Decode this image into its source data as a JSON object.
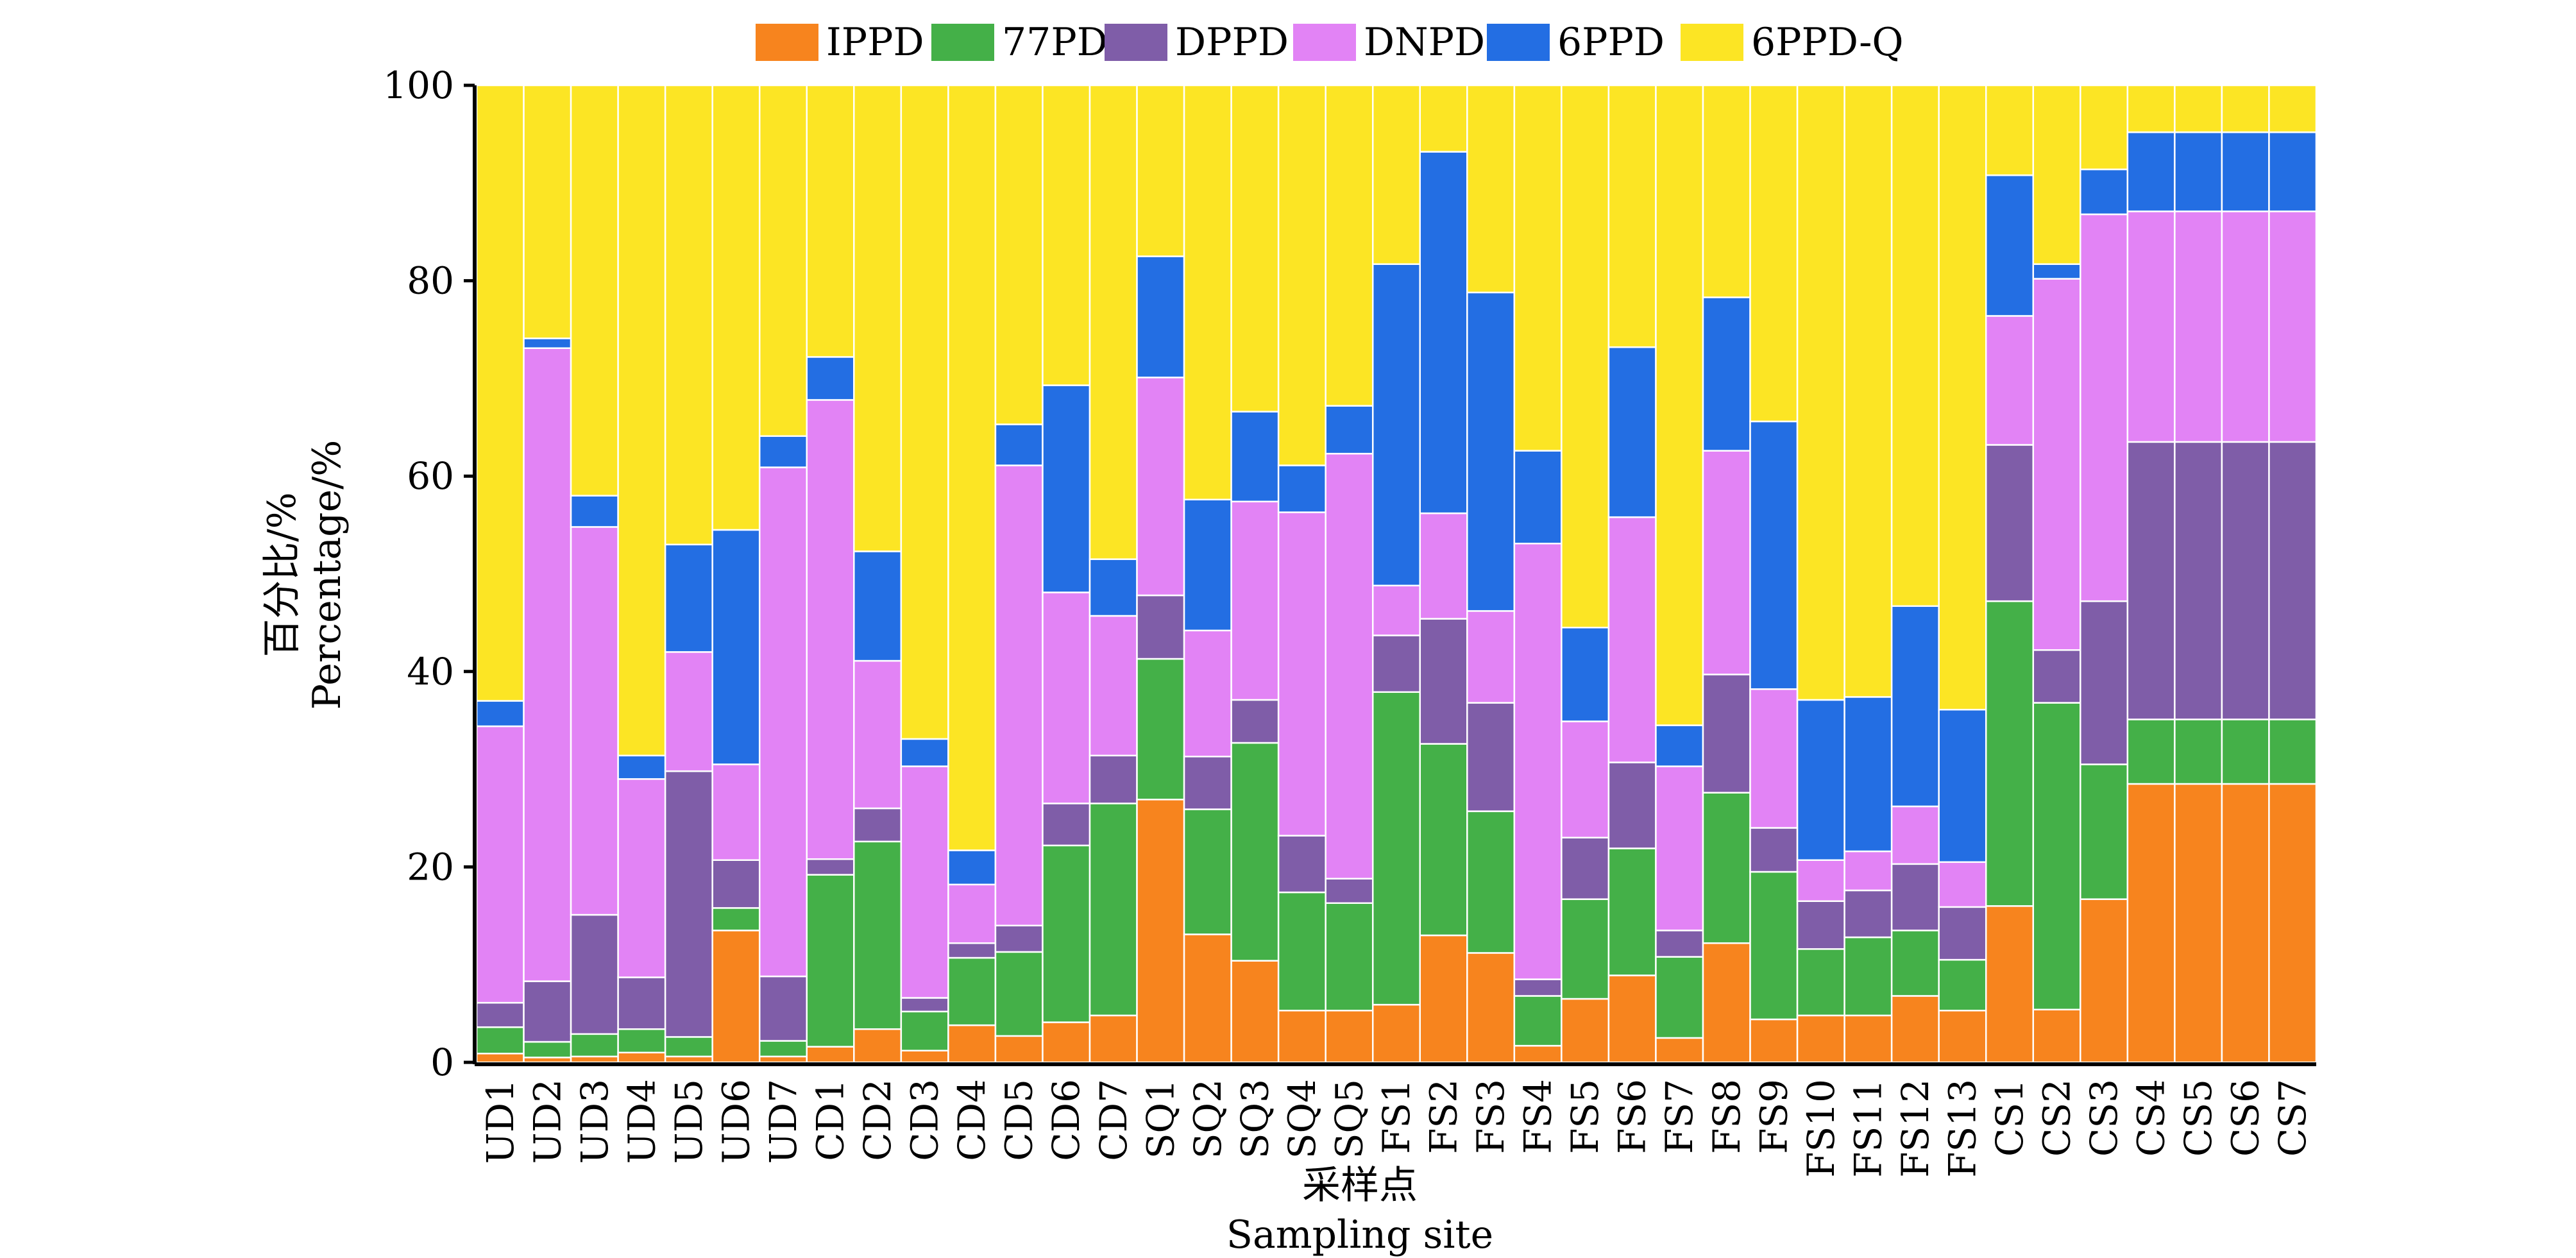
{
  "chart_data": {
    "type": "bar",
    "stacked": true,
    "title": "",
    "xlabel": [
      "采样点",
      "Sampling site"
    ],
    "ylabel": [
      "百分比/%",
      "Percentage/%"
    ],
    "ylim": [
      0,
      100
    ],
    "yticks": [
      0,
      20,
      40,
      60,
      80,
      100
    ],
    "grid": false,
    "legend_position": "top",
    "categories": [
      "UD1",
      "UD2",
      "UD3",
      "UD4",
      "UD5",
      "UD6",
      "UD7",
      "CD1",
      "CD2",
      "CD3",
      "CD4",
      "CD5",
      "CD6",
      "CD7",
      "SQ1",
      "SQ2",
      "SQ3",
      "SQ4",
      "SQ5",
      "FS1",
      "FS2",
      "FS3",
      "FS4",
      "FS5",
      "FS6",
      "FS7",
      "FS8",
      "FS9",
      "FS10",
      "FS11",
      "FS12",
      "FS13",
      "CS1",
      "CS2",
      "CS3",
      "CS4",
      "CS5",
      "CS6",
      "CS7"
    ],
    "series": [
      {
        "name": "IPPD",
        "color": "#F7841E",
        "values": [
          0.9,
          0.5,
          0.6,
          1.0,
          0.6,
          13.5,
          0.6,
          1.6,
          3.4,
          1.2,
          3.8,
          2.7,
          4.1,
          4.8,
          26.9,
          13.1,
          10.4,
          5.3,
          5.3,
          5.9,
          13.0,
          11.2,
          1.7,
          6.5,
          8.9,
          2.5,
          12.2,
          4.4,
          4.8,
          4.8,
          6.8,
          5.3,
          16.0,
          5.4,
          16.7,
          28.5,
          28.5,
          28.5,
          28.5
        ]
      },
      {
        "name": "77PD",
        "color": "#44B048",
        "values": [
          2.7,
          1.6,
          2.3,
          2.4,
          2.0,
          2.3,
          1.6,
          17.6,
          19.2,
          4.0,
          6.9,
          8.6,
          18.1,
          21.7,
          14.4,
          12.8,
          22.3,
          12.1,
          11.0,
          32.0,
          19.6,
          14.5,
          5.1,
          10.2,
          13.0,
          8.3,
          15.4,
          15.1,
          6.8,
          8.0,
          6.7,
          5.2,
          31.2,
          31.4,
          13.8,
          6.6,
          6.6,
          6.6,
          6.6
        ]
      },
      {
        "name": "DPPD",
        "color": "#7F5DA8",
        "values": [
          2.5,
          6.2,
          12.2,
          5.3,
          27.2,
          4.9,
          6.6,
          1.6,
          3.4,
          1.4,
          1.5,
          2.7,
          4.3,
          4.9,
          6.5,
          5.4,
          4.4,
          5.8,
          2.5,
          5.8,
          12.8,
          11.1,
          1.7,
          6.3,
          8.8,
          2.7,
          12.1,
          4.5,
          4.9,
          4.8,
          6.8,
          5.4,
          16.0,
          5.4,
          16.7,
          28.4,
          28.4,
          28.4,
          28.4
        ]
      },
      {
        "name": "DNPD",
        "color": "#E283F5",
        "values": [
          28.3,
          64.8,
          39.7,
          20.3,
          12.2,
          9.8,
          52.1,
          47.0,
          15.1,
          23.7,
          6.0,
          47.1,
          21.6,
          14.3,
          22.3,
          12.9,
          20.3,
          33.1,
          43.5,
          5.1,
          10.8,
          9.4,
          44.6,
          11.9,
          25.1,
          16.8,
          22.9,
          14.2,
          4.2,
          4.0,
          5.9,
          4.6,
          13.2,
          38.0,
          39.6,
          23.6,
          23.6,
          23.6,
          23.6
        ]
      },
      {
        "name": "6PPD",
        "color": "#236EE3",
        "values": [
          2.6,
          1.0,
          3.2,
          2.4,
          11.0,
          24.0,
          3.2,
          4.4,
          11.2,
          2.8,
          3.5,
          4.2,
          21.2,
          5.8,
          12.4,
          13.4,
          9.2,
          4.8,
          4.9,
          32.9,
          37.0,
          32.6,
          9.5,
          9.6,
          17.4,
          4.2,
          15.7,
          27.4,
          16.4,
          15.8,
          20.5,
          15.6,
          14.4,
          1.5,
          4.6,
          8.1,
          8.1,
          8.1,
          8.1
        ]
      },
      {
        "name": "6PPD-Q",
        "color": "#FCE524",
        "values": [
          63.0,
          25.9,
          42.0,
          68.6,
          47.0,
          45.5,
          35.9,
          27.8,
          47.7,
          66.9,
          78.3,
          34.7,
          30.7,
          48.5,
          17.5,
          42.4,
          33.4,
          38.9,
          32.8,
          18.3,
          6.8,
          21.2,
          37.4,
          55.5,
          26.8,
          65.5,
          21.7,
          34.4,
          62.9,
          62.6,
          53.3,
          63.9,
          9.2,
          18.3,
          8.6,
          4.8,
          4.8,
          4.8,
          4.8
        ]
      }
    ]
  }
}
